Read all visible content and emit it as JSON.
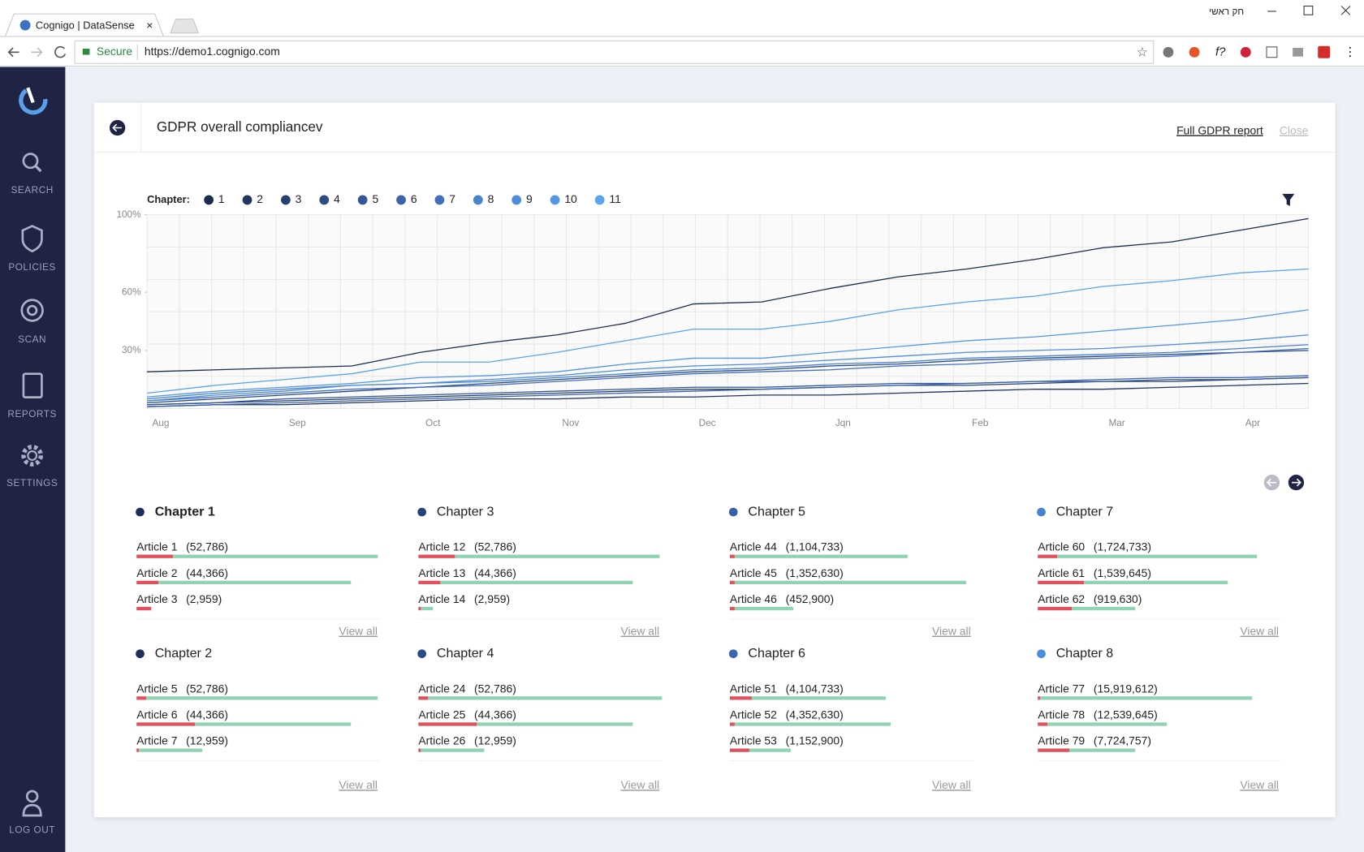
{
  "browser": {
    "tab_title": "Cognigo | DataSense",
    "profile": "חק ראשי",
    "secure": "Secure",
    "url": "https://demo1.cognigo.com"
  },
  "sidebar": {
    "items": [
      "SEARCH",
      "POLICIES",
      "SCAN",
      "REPORTS",
      "SETTINGS"
    ],
    "logout": "LOG OUT"
  },
  "panel": {
    "title": "GDPR overall compliancev",
    "full_report": "Full GDPR report",
    "close": "Close"
  },
  "chart_data": {
    "type": "line",
    "legend_title": "Chapter:",
    "categories": [
      "Aug",
      null,
      "Sep",
      null,
      "Oct",
      null,
      "Nov",
      null,
      "Dec",
      null,
      "Jqn",
      null,
      "Feb",
      null,
      "Mar",
      null,
      "Apr",
      null
    ],
    "series": [
      {
        "name": "1",
        "color": "#1c2b4e",
        "values": [
          19,
          20,
          21,
          22,
          29,
          34,
          38,
          44,
          54,
          55,
          62,
          68,
          72,
          77,
          83,
          86,
          92,
          98
        ]
      },
      {
        "name": "2",
        "color": "#22355f",
        "values": [
          1,
          2,
          2,
          3,
          4,
          5,
          5,
          6,
          6,
          7,
          7,
          8,
          9,
          10,
          10,
          11,
          12,
          13
        ]
      },
      {
        "name": "3",
        "color": "#27416f",
        "values": [
          2,
          3,
          4,
          5,
          6,
          7,
          8,
          9,
          10,
          10,
          11,
          12,
          12,
          13,
          14,
          14,
          15,
          16
        ]
      },
      {
        "name": "4",
        "color": "#2c4b82",
        "values": [
          3,
          5,
          7,
          9,
          11,
          13,
          15,
          17,
          19,
          20,
          22,
          23,
          25,
          26,
          27,
          28,
          29,
          30
        ]
      },
      {
        "name": "5",
        "color": "#33579a",
        "values": [
          2,
          3,
          5,
          6,
          7,
          8,
          9,
          10,
          11,
          11,
          12,
          13,
          13,
          14,
          14,
          15,
          15,
          16
        ]
      },
      {
        "name": "6",
        "color": "#3a63ab",
        "values": [
          1,
          2,
          3,
          4,
          5,
          6,
          7,
          8,
          9,
          10,
          11,
          12,
          13,
          14,
          15,
          16,
          16,
          17
        ]
      },
      {
        "name": "7",
        "color": "#416fbd",
        "values": [
          4,
          6,
          8,
          10,
          11,
          12,
          14,
          16,
          18,
          19,
          20,
          22,
          23,
          25,
          26,
          27,
          29,
          31
        ]
      },
      {
        "name": "8",
        "color": "#4a82d0",
        "values": [
          5,
          8,
          10,
          12,
          13,
          14,
          16,
          18,
          20,
          21,
          23,
          24,
          26,
          27,
          28,
          29,
          31,
          33
        ]
      },
      {
        "name": "9",
        "color": "#4f8cdc",
        "values": [
          4,
          7,
          9,
          12,
          13,
          15,
          17,
          20,
          22,
          23,
          25,
          27,
          29,
          30,
          31,
          33,
          35,
          38
        ]
      },
      {
        "name": "10",
        "color": "#5597e4",
        "values": [
          6,
          9,
          11,
          13,
          16,
          17,
          19,
          23,
          26,
          26,
          29,
          32,
          35,
          37,
          40,
          43,
          46,
          51
        ]
      },
      {
        "name": "11",
        "color": "#5ba3ec",
        "values": [
          8,
          12,
          15,
          18,
          24,
          24,
          29,
          35,
          41,
          41,
          45,
          51,
          55,
          58,
          63,
          66,
          70,
          72
        ]
      }
    ],
    "ylim": [
      0,
      100
    ],
    "yticks": [
      {
        "value": 30,
        "label": "30%"
      },
      {
        "value": 60,
        "label": "60%"
      },
      {
        "value": 100,
        "label": "100%"
      }
    ],
    "grid": true
  },
  "chapters": [
    {
      "name": "Chapter 1",
      "color": "#1e2d5a",
      "view_all": "View all",
      "articles": [
        {
          "name": "Article 1",
          "count": "(52,786)",
          "red": 15,
          "green": 84
        },
        {
          "name": "Article 2",
          "count": "(44,366)",
          "red": 9,
          "green": 79
        },
        {
          "name": "Article 3",
          "count": "(2,959)",
          "red": 6,
          "green": 0
        }
      ]
    },
    {
      "name": "Chapter 2",
      "color": "#1e2d5a",
      "view_all": "View all",
      "articles": [
        {
          "name": "Article 5",
          "count": "(52,786)",
          "red": 4,
          "green": 95
        },
        {
          "name": "Article 6",
          "count": "(44,366)",
          "red": 24,
          "green": 64
        },
        {
          "name": "Article 7",
          "count": "(12,959)",
          "red": 1,
          "green": 26
        }
      ]
    },
    {
      "name": "Chapter 3",
      "color": "#27427a",
      "view_all": "View all",
      "articles": [
        {
          "name": "Article 12",
          "count": "(52,786)",
          "red": 15,
          "green": 84
        },
        {
          "name": "Article 13",
          "count": "(44,366)",
          "red": 9,
          "green": 79
        },
        {
          "name": "Article 14",
          "count": "(2,959)",
          "red": 1,
          "green": 5
        }
      ]
    },
    {
      "name": "Chapter 4",
      "color": "#2b4a85",
      "view_all": "View all",
      "articles": [
        {
          "name": "Article 24",
          "count": "(52,786)",
          "red": 4,
          "green": 96
        },
        {
          "name": "Article 25",
          "count": "(44,366)",
          "red": 24,
          "green": 64
        },
        {
          "name": "Article 26",
          "count": "(12,959)",
          "red": 1,
          "green": 26
        }
      ]
    },
    {
      "name": "Chapter 5",
      "color": "#3560a8",
      "view_all": "View all",
      "articles": [
        {
          "name": "Article 44",
          "count": "(1,104,733)",
          "red": 2,
          "green": 71
        },
        {
          "name": "Article 45",
          "count": "(1,352,630)",
          "red": 2,
          "green": 95
        },
        {
          "name": "Article 46",
          "count": "(452,900)",
          "red": 2,
          "green": 24
        }
      ]
    },
    {
      "name": "Chapter 6",
      "color": "#3a65b0",
      "view_all": "View all",
      "articles": [
        {
          "name": "Article 51",
          "count": "(4,104,733)",
          "red": 9,
          "green": 55
        },
        {
          "name": "Article 52",
          "count": "(4,352,630)",
          "red": 2,
          "green": 64
        },
        {
          "name": "Article 53",
          "count": "(1,152,900)",
          "red": 8,
          "green": 17
        }
      ]
    },
    {
      "name": "Chapter 7",
      "color": "#4582d2",
      "view_all": "View all",
      "articles": [
        {
          "name": "Article 60",
          "count": "(1,724,733)",
          "red": 8,
          "green": 82
        },
        {
          "name": "Article 61",
          "count": "(1,539,645)",
          "red": 19,
          "green": 59
        },
        {
          "name": "Article 62",
          "count": "(919,630)",
          "red": 14,
          "green": 26
        }
      ]
    },
    {
      "name": "Chapter 8",
      "color": "#4a8ce0",
      "view_all": "View all",
      "articles": [
        {
          "name": "Article 77",
          "count": "(15,919,612)",
          "red": 1,
          "green": 87
        },
        {
          "name": "Article 78",
          "count": "(12,539,645)",
          "red": 4,
          "green": 49
        },
        {
          "name": "Article 79",
          "count": "(7,724,757)",
          "red": 13,
          "green": 27
        }
      ]
    }
  ]
}
